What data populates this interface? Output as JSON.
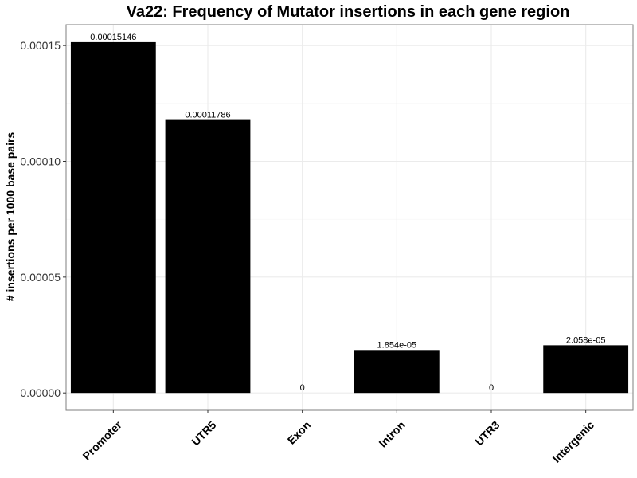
{
  "chart_data": {
    "type": "bar",
    "title": "Va22: Frequency of Mutator insertions in each gene region",
    "xlabel": "",
    "ylabel": "# insertions per 1000 base pairs",
    "categories": [
      "Promoter",
      "UTR5",
      "Exon",
      "Intron",
      "UTR3",
      "Intergenic"
    ],
    "values": [
      0.00015146,
      0.00011786,
      0,
      1.854e-05,
      0,
      2.058e-05
    ],
    "value_labels": [
      "0.00015146",
      "0.00011786",
      "0",
      "1.854e-05",
      "0",
      "2.058e-05"
    ],
    "ylim": [
      -7.5e-06,
      0.000159
    ],
    "yticks": [
      0,
      5e-05,
      0.0001,
      0.00015
    ],
    "ytick_labels": [
      "0.00000",
      "0.00005",
      "0.00010",
      "0.00015"
    ],
    "bar_color": "#000000",
    "grid": true,
    "legend": "none"
  }
}
